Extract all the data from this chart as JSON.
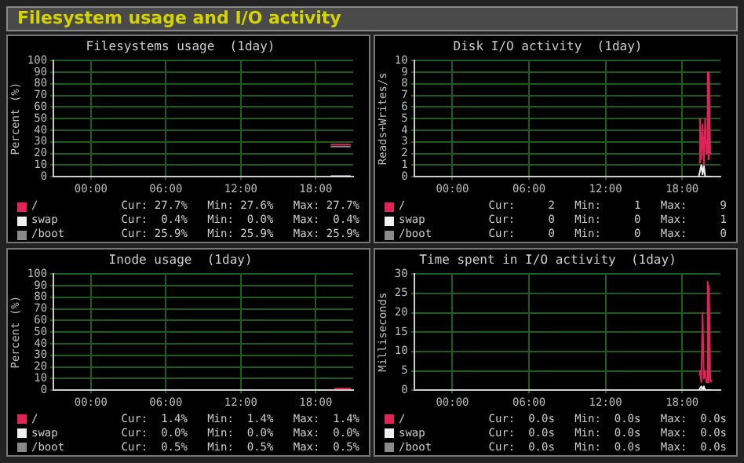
{
  "chart_data": [
    {
      "type": "other",
      "title": "Filesystem usage and I/O activity"
    },
    {
      "type": "line",
      "title": "Filesystems usage  (1day)",
      "ylabel": "Percent (%)",
      "x": [
        19.2,
        20.8
      ],
      "xlim": [
        -3,
        21
      ],
      "xticks": [
        {
          "value": 0,
          "label": "00:00"
        },
        {
          "value": 6,
          "label": "06:00"
        },
        {
          "value": 12,
          "label": "12:00"
        },
        {
          "value": 18,
          "label": "18:00"
        }
      ],
      "ylim": [
        0,
        100
      ],
      "yticks": [
        0,
        10,
        20,
        30,
        40,
        50,
        60,
        70,
        80,
        90,
        100
      ],
      "grid": true,
      "marker": "none",
      "legend": "bottom left",
      "series": [
        {
          "name": "/",
          "color": "#e0245a",
          "values": [
            27.7,
            27.7
          ]
        },
        {
          "name": "swap",
          "color": "#f0f0f0",
          "values": [
            0.4,
            0.4
          ]
        },
        {
          "name": "/boot",
          "color": "#8a8a8a",
          "values": [
            25.9,
            25.9
          ]
        }
      ],
      "annotations": [
        "Cur: 27.7%   Min: 27.6%   Max: 27.7%",
        "Cur:  0.4%   Min:  0.0%   Max:  0.4%",
        "Cur: 25.9%   Min: 25.9%   Max: 25.9%"
      ]
    },
    {
      "type": "line",
      "title": "Disk I/O activity  (1day)",
      "ylabel": "Reads+Writes/s",
      "x": [
        19.3,
        19.4,
        19.5,
        19.6,
        19.7,
        19.8,
        19.9,
        20.0,
        20.05,
        20.1,
        20.2,
        20.3
      ],
      "xlim": [
        -3,
        21
      ],
      "xticks": [
        {
          "value": 0,
          "label": "00:00"
        },
        {
          "value": 6,
          "label": "06:00"
        },
        {
          "value": 12,
          "label": "12:00"
        },
        {
          "value": 18,
          "label": "18:00"
        }
      ],
      "ylim": [
        0,
        10
      ],
      "yticks": [
        0,
        1,
        2,
        3,
        4,
        5,
        6,
        7,
        8,
        9,
        10
      ],
      "grid": true,
      "marker": "none",
      "legend": "bottom left",
      "series": [
        {
          "name": "/",
          "color": "#e0245a",
          "values": [
            1.2,
            5,
            1.5,
            4.5,
            1,
            5,
            2,
            9,
            1.5,
            9,
            2,
            2
          ]
        },
        {
          "name": "swap",
          "color": "#f0f0f0",
          "values": [
            0,
            0,
            1,
            0.2,
            1,
            0,
            0,
            0,
            0,
            0,
            0,
            0
          ]
        },
        {
          "name": "/boot",
          "color": "#8a8a8a",
          "values": [
            null,
            null,
            null,
            null,
            null,
            null,
            null,
            null,
            null,
            null,
            null,
            null
          ]
        }
      ],
      "annotations": [
        "Cur:     2   Min:     1   Max:     9",
        "Cur:     0   Min:     0   Max:     1",
        "Cur:     0   Min:     0   Max:     0"
      ]
    },
    {
      "type": "line",
      "title": "Inode usage  (1day)",
      "ylabel": "Percent (%)",
      "x": [
        19.5,
        20.8
      ],
      "xlim": [
        -3,
        21
      ],
      "xticks": [
        {
          "value": 0,
          "label": "00:00"
        },
        {
          "value": 6,
          "label": "06:00"
        },
        {
          "value": 12,
          "label": "12:00"
        },
        {
          "value": 18,
          "label": "18:00"
        }
      ],
      "ylim": [
        0,
        100
      ],
      "yticks": [
        0,
        10,
        20,
        30,
        40,
        50,
        60,
        70,
        80,
        90,
        100
      ],
      "grid": true,
      "marker": "none",
      "legend": "bottom left",
      "series": [
        {
          "name": "/",
          "color": "#e0245a",
          "values": [
            1.4,
            1.4
          ]
        },
        {
          "name": "swap",
          "color": "#f0f0f0",
          "values": [
            0,
            0
          ]
        },
        {
          "name": "/boot",
          "color": "#8a8a8a",
          "values": [
            null,
            null
          ]
        }
      ],
      "annotations": [
        "Cur:  1.4%   Min:  1.4%   Max:  1.4%",
        "Cur:  0.0%   Min:  0.0%   Max:  0.0%",
        "Cur:  0.5%   Min:  0.5%   Max:  0.5%"
      ]
    },
    {
      "type": "line",
      "title": "Time spent in I/O activity  (1day)",
      "ylabel": "Milliseconds",
      "x": [
        19.3,
        19.4,
        19.5,
        19.6,
        19.7,
        19.8,
        19.9,
        20.0,
        20.05,
        20.1,
        20.2,
        20.3
      ],
      "xlim": [
        -3,
        21
      ],
      "xticks": [
        {
          "value": 0,
          "label": "00:00"
        },
        {
          "value": 6,
          "label": "06:00"
        },
        {
          "value": 12,
          "label": "12:00"
        },
        {
          "value": 18,
          "label": "18:00"
        }
      ],
      "ylim": [
        0,
        30
      ],
      "yticks": [
        0,
        5,
        10,
        15,
        20,
        25,
        30
      ],
      "grid": true,
      "marker": "none",
      "legend": "bottom left",
      "series": [
        {
          "name": "/",
          "color": "#e0245a",
          "values": [
            4,
            5,
            2,
            20,
            3,
            5,
            2,
            28,
            2,
            27,
            3,
            2
          ]
        },
        {
          "name": "swap",
          "color": "#f0f0f0",
          "values": [
            0,
            0,
            1,
            0,
            1,
            0,
            0,
            0,
            0,
            0,
            0,
            0
          ]
        },
        {
          "name": "/boot",
          "color": "#8a8a8a",
          "values": [
            null,
            null,
            null,
            null,
            null,
            null,
            null,
            null,
            null,
            null,
            null,
            null
          ]
        }
      ],
      "annotations": [
        "Cur:  0.0s   Min:  0.0s   Max:  0.0s",
        "Cur:  0.0s   Min:  0.0s   Max:  0.0s",
        "Cur:  0.0s   Min:  0.0s   Max:  0.0s"
      ]
    }
  ]
}
